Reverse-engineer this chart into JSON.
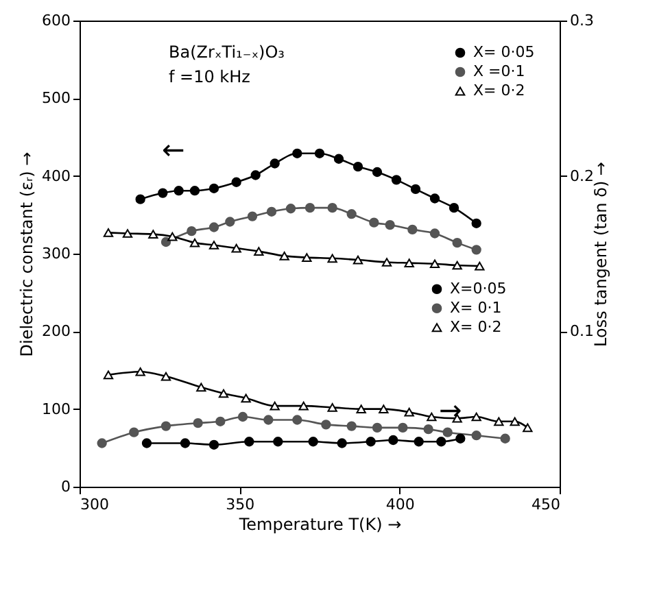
{
  "chart_data": {
    "type": "line",
    "xlabel": "Temperature  T(K) →",
    "ylabel": "Dielectric constant (εᵣ) →",
    "y2label": "Loss tangent (tan δ) →",
    "annotations": [
      "Ba(ZrₓTi₁₋ₓ)O₃",
      "f =10 kHz",
      "←",
      "→"
    ],
    "xlim": [
      300,
      450
    ],
    "xticks": [
      300,
      350,
      400,
      450
    ],
    "ylim": [
      0,
      600
    ],
    "yticks": [
      0,
      100,
      200,
      300,
      400,
      500,
      600
    ],
    "y2lim": [
      0,
      0.3
    ],
    "y2ticks": [
      0.1,
      0.2,
      0.3
    ],
    "legend": "right",
    "series": [
      {
        "name": "X= 0·05",
        "color": "#000000",
        "marker": "circle",
        "x": [
          319,
          326,
          331,
          336,
          342,
          349,
          355,
          361,
          368,
          375,
          381,
          387,
          393,
          399,
          405,
          411,
          417,
          424
        ],
        "values": [
          370,
          378,
          381,
          381,
          384,
          392,
          401,
          416,
          429,
          429,
          422,
          412,
          405,
          395,
          383,
          371,
          359,
          339
        ]
      },
      {
        "name": "X =0·1",
        "color": "#555555",
        "marker": "circle",
        "x": [
          327,
          335,
          342,
          347,
          354,
          360,
          366,
          372,
          379,
          385,
          392,
          397,
          404,
          411,
          418,
          424
        ],
        "values": [
          315,
          329,
          334,
          341,
          348,
          354,
          358,
          359,
          359,
          351,
          340,
          337,
          331,
          326,
          314,
          305
        ]
      },
      {
        "name": "X= 0·2",
        "color": "#000000",
        "marker": "triangle",
        "x": [
          309,
          315,
          323,
          329,
          336,
          342,
          349,
          356,
          364,
          371,
          379,
          387,
          396,
          403,
          411,
          418,
          425
        ],
        "values": [
          327,
          326,
          325,
          322,
          314,
          311,
          307,
          303,
          297,
          295,
          294,
          292,
          289,
          288,
          287,
          285,
          284
        ]
      },
      {
        "name": "X=0·05",
        "color": "#000000",
        "marker": "circle",
        "axis": "y2",
        "x": [
          321,
          333,
          342,
          353,
          362,
          373,
          382,
          391,
          398,
          406,
          413,
          419
        ],
        "values": [
          0.028,
          0.028,
          0.027,
          0.029,
          0.029,
          0.029,
          0.028,
          0.029,
          0.03,
          0.029,
          0.029,
          0.031
        ]
      },
      {
        "name": "X= 0·1",
        "color": "#555555",
        "marker": "circle",
        "axis": "y2",
        "x": [
          307,
          317,
          327,
          337,
          344,
          351,
          359,
          368,
          377,
          385,
          393,
          401,
          409,
          415,
          424,
          433
        ],
        "values": [
          0.028,
          0.035,
          0.039,
          0.041,
          0.042,
          0.045,
          0.043,
          0.043,
          0.04,
          0.039,
          0.038,
          0.038,
          0.037,
          0.035,
          0.033,
          0.031
        ]
      },
      {
        "name": "X= 0·2",
        "color": "#000000",
        "marker": "triangle",
        "axis": "y2",
        "x": [
          309,
          319,
          327,
          338,
          345,
          352,
          361,
          370,
          379,
          388,
          395,
          403,
          410,
          418,
          424,
          431,
          436,
          440
        ],
        "values": [
          0.072,
          0.074,
          0.071,
          0.064,
          0.06,
          0.057,
          0.052,
          0.052,
          0.051,
          0.05,
          0.05,
          0.048,
          0.045,
          0.044,
          0.045,
          0.042,
          0.042,
          0.038
        ]
      }
    ]
  }
}
